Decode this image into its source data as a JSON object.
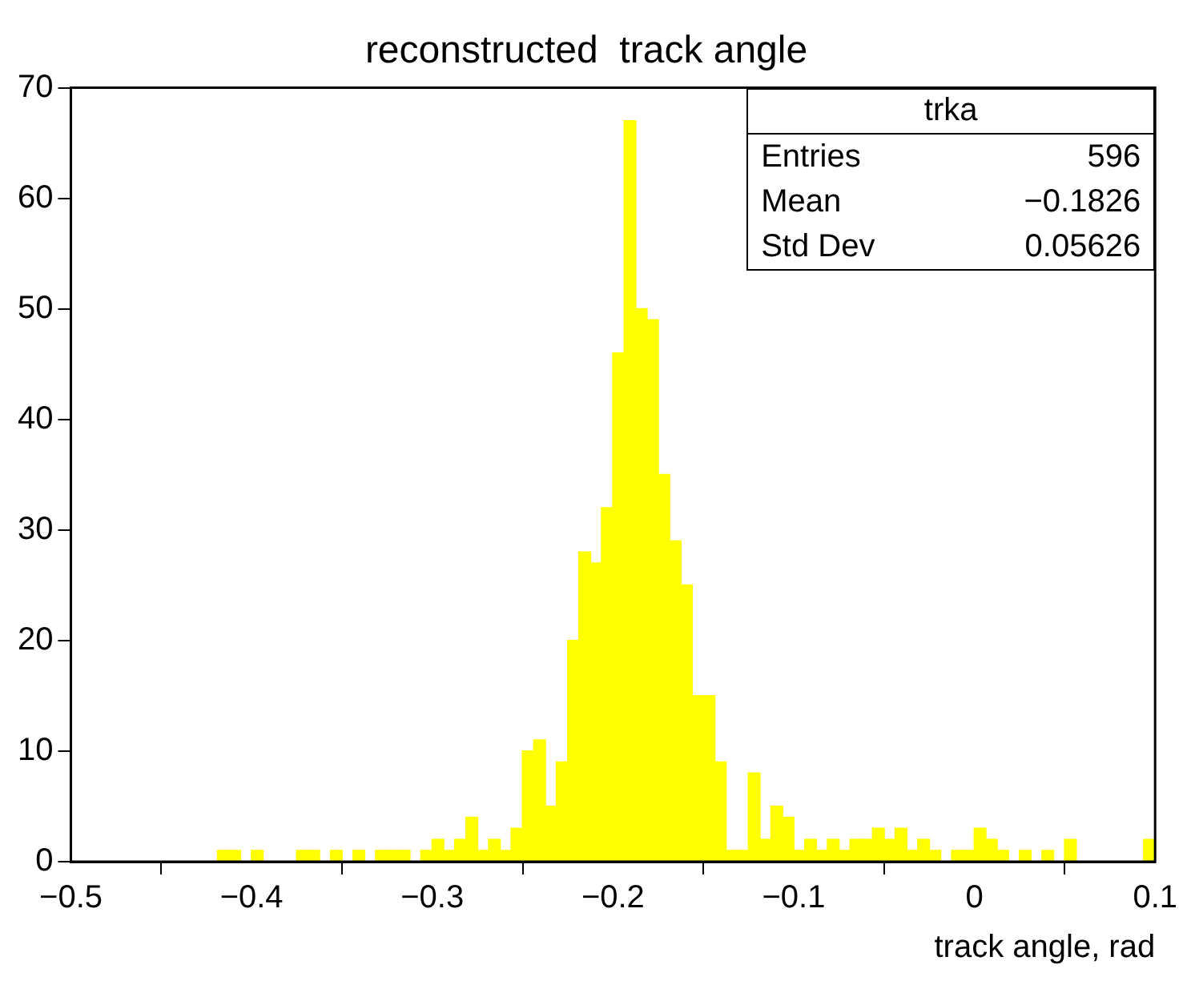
{
  "chart_data": {
    "type": "histogram",
    "title": "reconstructed  track angle",
    "xlabel": "track angle, rad",
    "bins": [
      -0.5,
      -0.49375,
      -0.4875,
      -0.48125,
      -0.475,
      -0.46875,
      -0.4625,
      -0.45625,
      -0.45,
      -0.44375,
      -0.4375,
      -0.43125,
      -0.425,
      -0.41875,
      -0.4125,
      -0.40625,
      -0.4,
      -0.39375,
      -0.3875,
      -0.38125,
      -0.375,
      -0.36875,
      -0.3625,
      -0.35625,
      -0.35,
      -0.34375,
      -0.3375,
      -0.33125,
      -0.325,
      -0.31875,
      -0.3125,
      -0.30625,
      -0.3,
      -0.29375,
      -0.2875,
      -0.28125,
      -0.275,
      -0.26875,
      -0.2625,
      -0.25625,
      -0.25,
      -0.24375,
      -0.2375,
      -0.23125,
      -0.225,
      -0.21875,
      -0.2125,
      -0.20625,
      -0.2,
      -0.19375,
      -0.1875,
      -0.18125,
      -0.175,
      -0.16875,
      -0.1625,
      -0.15625,
      -0.15,
      -0.14375,
      -0.1375,
      -0.13125,
      -0.125,
      -0.11875,
      -0.1125,
      -0.10625,
      -0.1,
      -0.09375,
      -0.0875,
      -0.08125,
      -0.075,
      -0.06875,
      -0.0625,
      -0.05625,
      -0.05,
      -0.04375,
      -0.0375,
      -0.03125,
      -0.025,
      -0.01875,
      -0.0125,
      -0.00625,
      0,
      0.00625,
      0.0125,
      0.01875,
      0.025,
      0.03125,
      0.0375,
      0.04375,
      0.05,
      0.05625,
      0.0625,
      0.06875,
      0.075,
      0.08125,
      0.0875,
      0.09375,
      0.1
    ],
    "values": [
      0,
      0,
      0,
      0,
      0,
      0,
      0,
      0,
      0,
      0,
      0,
      0,
      0,
      1,
      1,
      0,
      1,
      0,
      0,
      0,
      1,
      1,
      0,
      1,
      0,
      1,
      0,
      1,
      1,
      1,
      0,
      1,
      2,
      1,
      2,
      4,
      1,
      2,
      1,
      3,
      10,
      11,
      5,
      9,
      20,
      28,
      27,
      32,
      46,
      67,
      50,
      49,
      35,
      29,
      25,
      15,
      15,
      9,
      1,
      1,
      8,
      2,
      5,
      4,
      1,
      2,
      1,
      2,
      1,
      2,
      2,
      3,
      2,
      3,
      1,
      2,
      1,
      0,
      1,
      1,
      3,
      2,
      1,
      0,
      1,
      0,
      1,
      0,
      2,
      0,
      0,
      0,
      0,
      0,
      0,
      2
    ],
    "color": "#ffff00",
    "xlim": [
      -0.5,
      0.1
    ],
    "xticks": [
      -0.5,
      -0.4,
      -0.3,
      -0.2,
      -0.1,
      0,
      0.1
    ],
    "ylim": [
      0,
      70
    ],
    "yticks": [
      0,
      10,
      20,
      30,
      40,
      50,
      60,
      70
    ],
    "grid": false,
    "annotations": [
      "trka",
      "Entries",
      "596",
      "Mean",
      "−0.1826",
      "Std Dev",
      "0.05626"
    ]
  }
}
